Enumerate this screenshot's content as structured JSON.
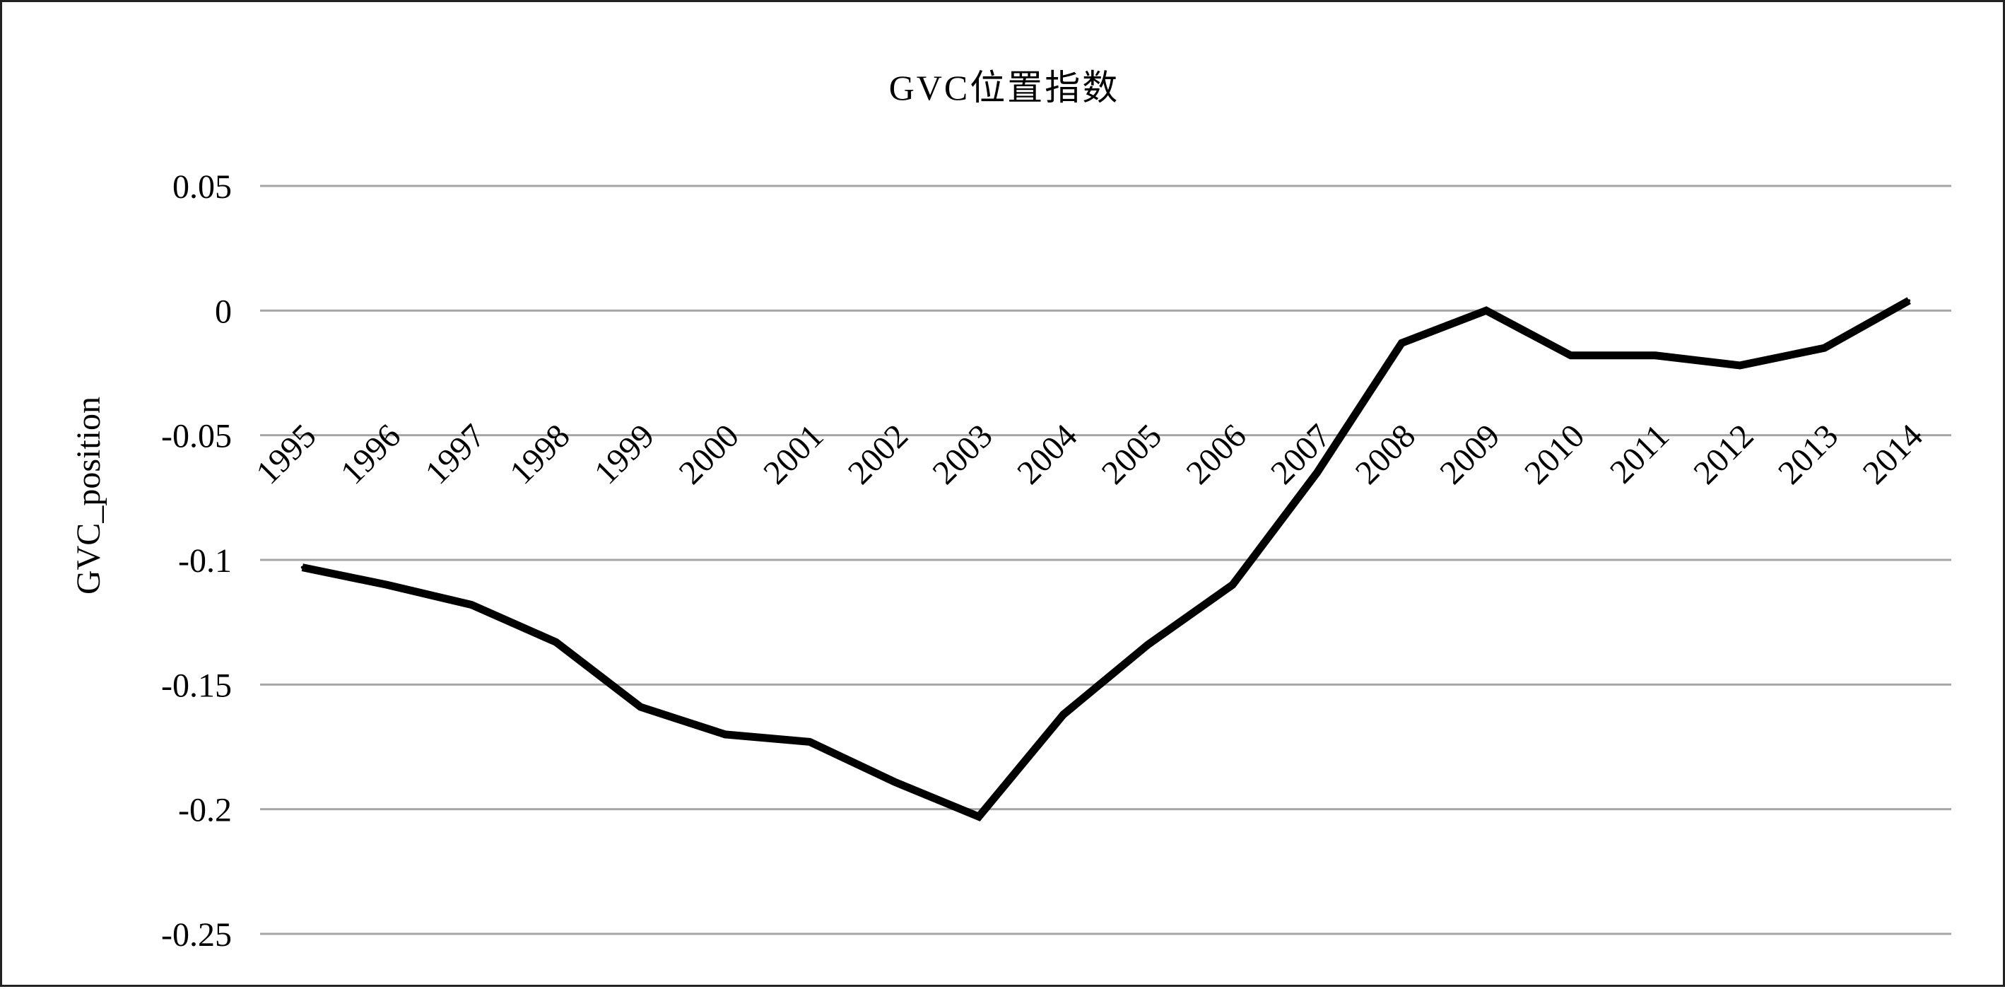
{
  "chart_data": {
    "type": "line",
    "title": "GVC位置指数",
    "xlabel": "",
    "ylabel": "GVC_position",
    "categories": [
      "1995",
      "1996",
      "1997",
      "1998",
      "1999",
      "2000",
      "2001",
      "2002",
      "2003",
      "2004",
      "2005",
      "2006",
      "2007",
      "2008",
      "2009",
      "2010",
      "2011",
      "2012",
      "2013",
      "2014"
    ],
    "series": [
      {
        "values": [
          -0.103,
          -0.11,
          -0.118,
          -0.133,
          -0.159,
          -0.17,
          -0.173,
          -0.189,
          -0.203,
          -0.162,
          -0.134,
          -0.11,
          -0.065,
          -0.013,
          0.0,
          -0.018,
          -0.018,
          -0.022,
          -0.015,
          0.004
        ]
      }
    ],
    "y_ticks": [
      "0.05",
      "0",
      "-0.05",
      "-0.1",
      "-0.15",
      "-0.2",
      "-0.25"
    ],
    "y_tick_values": [
      0.05,
      0,
      -0.05,
      -0.1,
      -0.15,
      -0.2,
      -0.25
    ],
    "ylim": [
      -0.25,
      0.05
    ],
    "grid": true,
    "legend": "none",
    "colors": {
      "line": "#000000",
      "grid": "#a6a6a6",
      "text": "#000000",
      "border": "#222222"
    }
  }
}
